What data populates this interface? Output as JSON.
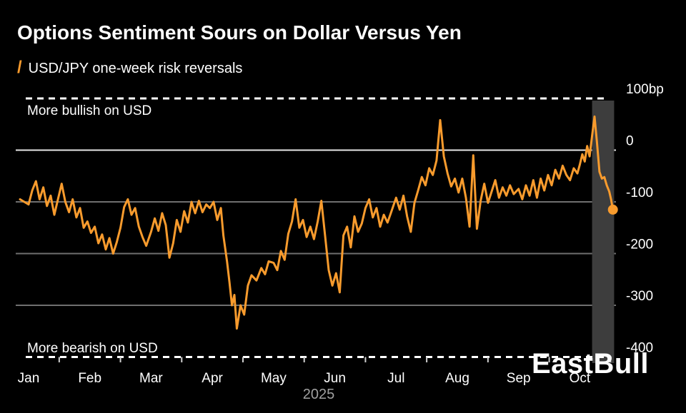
{
  "legend": {
    "icon_glyph": "/"
  },
  "watermark": "EastBull",
  "colors": {
    "background": "#000000",
    "line": "#F89B2D",
    "grid": "#6F6F6F",
    "grid_zero": "#E6E6E6",
    "dashed": "#FFFFFF",
    "band": "#3D3D3D",
    "text": "#FFFFFF",
    "muted": "#A0A0A0",
    "tick": "#CFCFCF"
  },
  "chart_data": {
    "type": "line",
    "title": "Options Sentiment Sours on Dollar Versus Yen",
    "unit": "bp",
    "x_tick_labels": [
      "Jan",
      "Feb",
      "Mar",
      "Apr",
      "May",
      "Jun",
      "Jul",
      "Aug",
      "Sep",
      "Oct"
    ],
    "x_axis_year": "2025",
    "ylim": [
      -400,
      100
    ],
    "y_ticks": [
      {
        "value": 100,
        "label": "100bp",
        "line": "dashed"
      },
      {
        "value": 0,
        "label": "0",
        "line": "zero"
      },
      {
        "value": -100,
        "label": "-100",
        "line": "solid"
      },
      {
        "value": -200,
        "label": "-200",
        "line": "solid"
      },
      {
        "value": -300,
        "label": "-300",
        "line": "solid"
      },
      {
        "value": -400,
        "label": "-400",
        "line": "dashed"
      }
    ],
    "annotations": {
      "top": "More bullish on USD",
      "bottom": "More bearish on USD"
    },
    "highlight_band": {
      "x_from_month": 9.2,
      "x_to_month": 9.56
    },
    "end_marker": true,
    "series": [
      {
        "name": "USD/JPY one-week risk reversals",
        "color": "#F89B2D",
        "points": [
          [
            -0.14,
            -95
          ],
          [
            0.0,
            -105
          ],
          [
            0.06,
            -78
          ],
          [
            0.12,
            -60
          ],
          [
            0.18,
            -95
          ],
          [
            0.24,
            -72
          ],
          [
            0.3,
            -108
          ],
          [
            0.36,
            -88
          ],
          [
            0.42,
            -125
          ],
          [
            0.48,
            -95
          ],
          [
            0.54,
            -65
          ],
          [
            0.6,
            -100
          ],
          [
            0.66,
            -120
          ],
          [
            0.72,
            -95
          ],
          [
            0.78,
            -130
          ],
          [
            0.84,
            -112
          ],
          [
            0.9,
            -150
          ],
          [
            0.96,
            -138
          ],
          [
            1.02,
            -160
          ],
          [
            1.08,
            -148
          ],
          [
            1.14,
            -180
          ],
          [
            1.2,
            -163
          ],
          [
            1.26,
            -192
          ],
          [
            1.32,
            -170
          ],
          [
            1.38,
            -200
          ],
          [
            1.44,
            -178
          ],
          [
            1.5,
            -150
          ],
          [
            1.56,
            -110
          ],
          [
            1.62,
            -95
          ],
          [
            1.68,
            -125
          ],
          [
            1.74,
            -112
          ],
          [
            1.8,
            -148
          ],
          [
            1.86,
            -168
          ],
          [
            1.92,
            -185
          ],
          [
            2.0,
            -158
          ],
          [
            2.06,
            -132
          ],
          [
            2.12,
            -156
          ],
          [
            2.18,
            -122
          ],
          [
            2.24,
            -145
          ],
          [
            2.3,
            -208
          ],
          [
            2.36,
            -180
          ],
          [
            2.42,
            -135
          ],
          [
            2.48,
            -158
          ],
          [
            2.54,
            -118
          ],
          [
            2.6,
            -140
          ],
          [
            2.66,
            -100
          ],
          [
            2.72,
            -122
          ],
          [
            2.78,
            -98
          ],
          [
            2.84,
            -120
          ],
          [
            2.9,
            -105
          ],
          [
            2.96,
            -112
          ],
          [
            3.02,
            -100
          ],
          [
            3.08,
            -135
          ],
          [
            3.14,
            -112
          ],
          [
            3.18,
            -165
          ],
          [
            3.24,
            -215
          ],
          [
            3.28,
            -255
          ],
          [
            3.32,
            -300
          ],
          [
            3.36,
            -280
          ],
          [
            3.4,
            -345
          ],
          [
            3.46,
            -300
          ],
          [
            3.52,
            -318
          ],
          [
            3.58,
            -262
          ],
          [
            3.64,
            -242
          ],
          [
            3.72,
            -252
          ],
          [
            3.8,
            -228
          ],
          [
            3.86,
            -240
          ],
          [
            3.92,
            -215
          ],
          [
            4.0,
            -218
          ],
          [
            4.06,
            -232
          ],
          [
            4.12,
            -195
          ],
          [
            4.18,
            -212
          ],
          [
            4.24,
            -162
          ],
          [
            4.3,
            -138
          ],
          [
            4.36,
            -95
          ],
          [
            4.42,
            -150
          ],
          [
            4.48,
            -135
          ],
          [
            4.54,
            -168
          ],
          [
            4.6,
            -148
          ],
          [
            4.66,
            -172
          ],
          [
            4.72,
            -138
          ],
          [
            4.78,
            -98
          ],
          [
            4.84,
            -165
          ],
          [
            4.9,
            -232
          ],
          [
            4.96,
            -262
          ],
          [
            5.02,
            -238
          ],
          [
            5.08,
            -275
          ],
          [
            5.14,
            -165
          ],
          [
            5.2,
            -148
          ],
          [
            5.26,
            -188
          ],
          [
            5.32,
            -128
          ],
          [
            5.38,
            -158
          ],
          [
            5.44,
            -142
          ],
          [
            5.5,
            -112
          ],
          [
            5.56,
            -95
          ],
          [
            5.62,
            -130
          ],
          [
            5.68,
            -112
          ],
          [
            5.74,
            -148
          ],
          [
            5.8,
            -125
          ],
          [
            5.86,
            -140
          ],
          [
            5.92,
            -120
          ],
          [
            6.0,
            -92
          ],
          [
            6.06,
            -115
          ],
          [
            6.12,
            -88
          ],
          [
            6.18,
            -128
          ],
          [
            6.24,
            -158
          ],
          [
            6.3,
            -102
          ],
          [
            6.36,
            -78
          ],
          [
            6.42,
            -52
          ],
          [
            6.48,
            -68
          ],
          [
            6.54,
            -35
          ],
          [
            6.6,
            -48
          ],
          [
            6.66,
            -20
          ],
          [
            6.72,
            58
          ],
          [
            6.78,
            -12
          ],
          [
            6.84,
            -45
          ],
          [
            6.9,
            -70
          ],
          [
            6.96,
            -55
          ],
          [
            7.02,
            -82
          ],
          [
            7.08,
            -55
          ],
          [
            7.14,
            -92
          ],
          [
            7.2,
            -148
          ],
          [
            7.26,
            -10
          ],
          [
            7.32,
            -152
          ],
          [
            7.38,
            -98
          ],
          [
            7.44,
            -65
          ],
          [
            7.5,
            -102
          ],
          [
            7.56,
            -80
          ],
          [
            7.62,
            -58
          ],
          [
            7.68,
            -92
          ],
          [
            7.74,
            -72
          ],
          [
            7.8,
            -88
          ],
          [
            7.86,
            -68
          ],
          [
            7.92,
            -85
          ],
          [
            8.0,
            -75
          ],
          [
            8.06,
            -95
          ],
          [
            8.12,
            -68
          ],
          [
            8.18,
            -88
          ],
          [
            8.24,
            -58
          ],
          [
            8.3,
            -92
          ],
          [
            8.36,
            -55
          ],
          [
            8.42,
            -78
          ],
          [
            8.48,
            -48
          ],
          [
            8.54,
            -68
          ],
          [
            8.6,
            -38
          ],
          [
            8.66,
            -55
          ],
          [
            8.72,
            -30
          ],
          [
            8.78,
            -48
          ],
          [
            8.84,
            -58
          ],
          [
            8.9,
            -35
          ],
          [
            8.96,
            -45
          ],
          [
            9.0,
            -28
          ],
          [
            9.04,
            -8
          ],
          [
            9.08,
            -22
          ],
          [
            9.12,
            8
          ],
          [
            9.16,
            -12
          ],
          [
            9.2,
            28
          ],
          [
            9.24,
            65
          ],
          [
            9.28,
            15
          ],
          [
            9.32,
            -42
          ],
          [
            9.36,
            -55
          ],
          [
            9.4,
            -52
          ],
          [
            9.44,
            -68
          ],
          [
            9.48,
            -80
          ],
          [
            9.51,
            -95
          ],
          [
            9.54,
            -115
          ]
        ]
      }
    ]
  }
}
